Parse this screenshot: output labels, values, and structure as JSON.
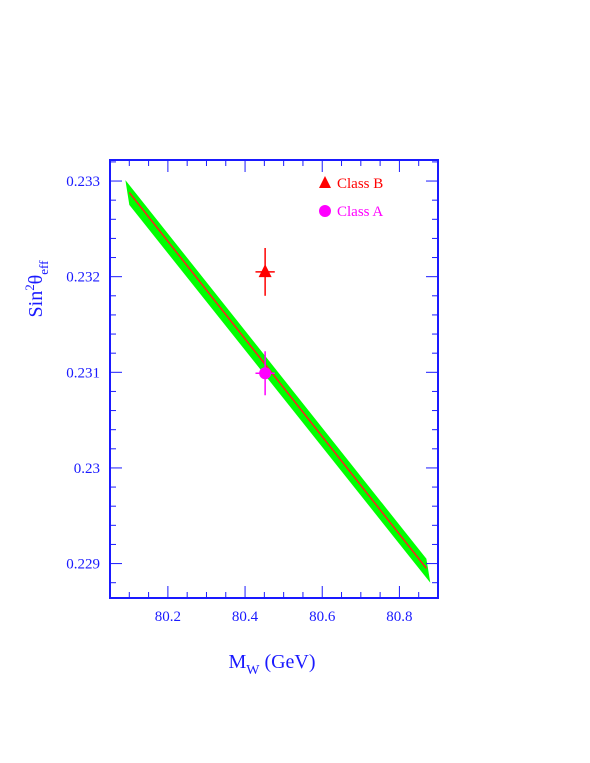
{
  "chart_data": {
    "type": "scatter",
    "xlabel": {
      "main": "M",
      "sub": "W",
      "unit": " (GeV)"
    },
    "ylabel": {
      "main": "Sin",
      "sup": "2",
      "theta": "θ",
      "sub": "eff"
    },
    "xlim": [
      80.05,
      80.9
    ],
    "ylim": [
      0.22864,
      0.23322
    ],
    "xticks": [
      "80.2",
      "80.4",
      "80.6",
      "80.8"
    ],
    "xtick_values": [
      80.2,
      80.4,
      80.6,
      80.8
    ],
    "yticks": [
      "0.229",
      "0.23",
      "0.231",
      "0.232",
      "0.233"
    ],
    "ytick_values": [
      0.229,
      0.23,
      0.231,
      0.232,
      0.233
    ],
    "grid": false,
    "legend_position": "top-right",
    "band": {
      "center": [
        [
          80.1,
          0.23288
        ],
        [
          80.87,
          0.22895
        ]
      ],
      "upper": [
        [
          80.09,
          0.23301
        ],
        [
          80.87,
          0.22905
        ]
      ],
      "lower": [
        [
          80.1,
          0.23275
        ],
        [
          80.88,
          0.2288
        ]
      ],
      "fill_color": "#00ff00",
      "line_color": "#ff2020"
    },
    "series": [
      {
        "name": "Class B",
        "marker": "triangle",
        "color": "#ff0000",
        "x": 80.452,
        "y": 0.23205,
        "xerr": 0.025,
        "yerr": 0.00025
      },
      {
        "name": "Class A",
        "marker": "circle",
        "color": "#ff00ff",
        "x": 80.452,
        "y": 0.23099,
        "xerr": 0.025,
        "yerr": 0.00023
      }
    ],
    "colors": {
      "axis": "#1a1aff"
    }
  }
}
